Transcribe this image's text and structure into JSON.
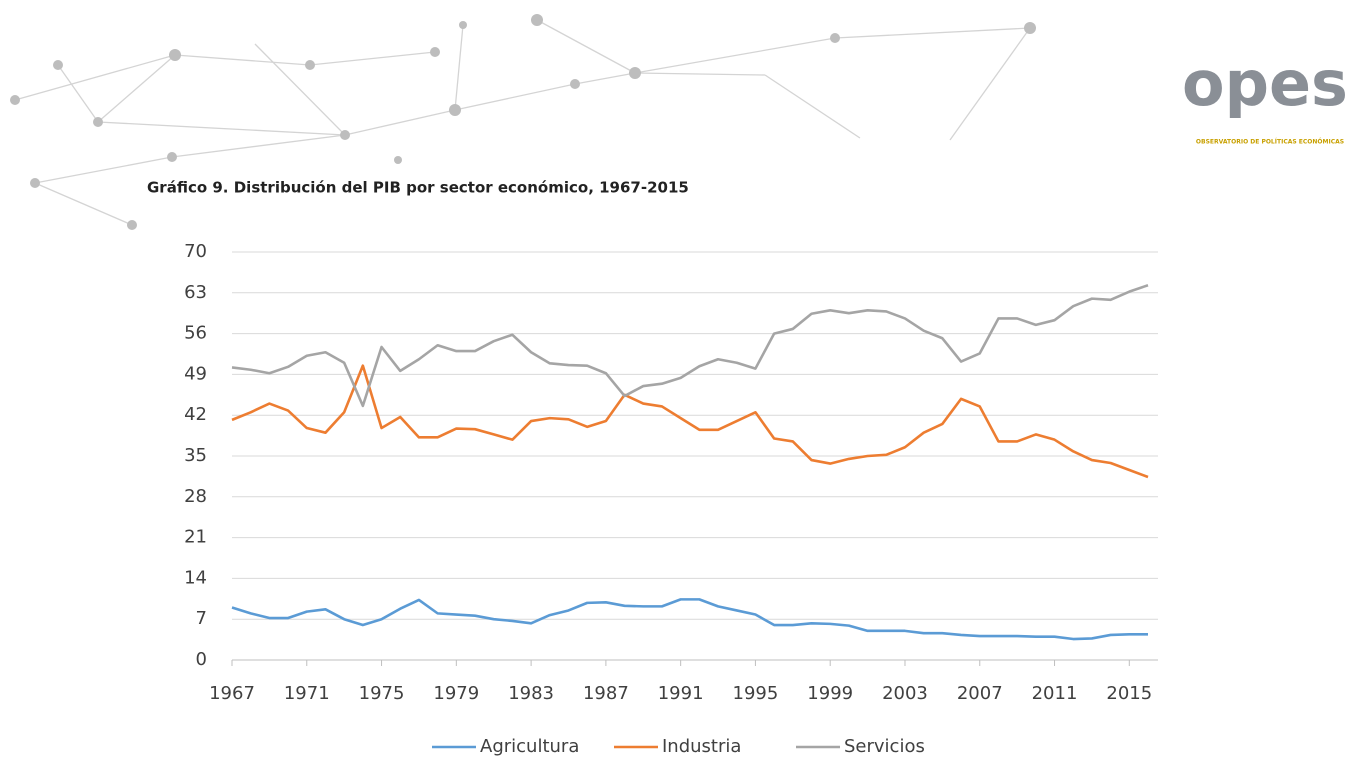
{
  "logo": {
    "name": "opes",
    "tagline": "OBSERVATORIO DE POLÍTICAS ECONÓMICAS"
  },
  "chart_data": {
    "type": "line",
    "title": "Gráfico 9. Distribución del PIB por sector económico, 1967-2015",
    "x": [
      1967,
      1968,
      1969,
      1970,
      1971,
      1972,
      1973,
      1974,
      1975,
      1976,
      1977,
      1978,
      1979,
      1980,
      1981,
      1982,
      1983,
      1984,
      1985,
      1986,
      1987,
      1988,
      1989,
      1990,
      1991,
      1992,
      1993,
      1994,
      1995,
      1996,
      1997,
      1998,
      1999,
      2000,
      2001,
      2002,
      2003,
      2004,
      2005,
      2006,
      2007,
      2008,
      2009,
      2010,
      2011,
      2012,
      2013,
      2014,
      2015,
      2016
    ],
    "series": [
      {
        "name": "Agricultura",
        "color": "#5b9bd5",
        "values": [
          9,
          8,
          7.2,
          7.2,
          8.3,
          8.7,
          7,
          6,
          7,
          8.8,
          10.3,
          8,
          7.8,
          7.6,
          7,
          6.7,
          6.3,
          7.7,
          8.5,
          9.8,
          9.9,
          9.3,
          9.2,
          9.2,
          10.4,
          10.4,
          9.2,
          8.5,
          7.8,
          6,
          6,
          6.3,
          6.2,
          5.9,
          5,
          5,
          5,
          4.6,
          4.6,
          4.3,
          4.1,
          4.1,
          4.1,
          4,
          4,
          3.6,
          3.7,
          4.3,
          4.4,
          4.4
        ]
      },
      {
        "name": "Industria",
        "color": "#ed7d31",
        "values": [
          41.2,
          42.5,
          44,
          42.8,
          39.8,
          39,
          42.5,
          50.5,
          39.8,
          41.7,
          38.2,
          38.2,
          39.7,
          39.6,
          38.7,
          37.8,
          41,
          41.5,
          41.3,
          40,
          41,
          45.5,
          44,
          43.5,
          41.5,
          39.5,
          39.5,
          41,
          42.5,
          38,
          37.5,
          34.3,
          33.7,
          34.5,
          35,
          35.2,
          36.5,
          39,
          40.5,
          44.8,
          43.5,
          37.5,
          37.5,
          38.7,
          37.8,
          35.8,
          34.3,
          33.8,
          32.6,
          31.4
        ]
      },
      {
        "name": "Servicios",
        "color": "#a5a5a5",
        "values": [
          50.2,
          49.8,
          49.2,
          50.3,
          52.2,
          52.8,
          51,
          43.6,
          53.7,
          49.6,
          51.6,
          54,
          53,
          53,
          54.7,
          55.8,
          52.8,
          50.9,
          50.6,
          50.5,
          49.2,
          45.3,
          47,
          47.4,
          48.4,
          50.4,
          51.6,
          51,
          50,
          56,
          56.8,
          59.4,
          60,
          59.5,
          60,
          59.8,
          58.6,
          56.5,
          55.2,
          51.2,
          52.6,
          58.6,
          58.6,
          57.5,
          58.3,
          60.7,
          62,
          61.8,
          63.2,
          64.3
        ]
      }
    ],
    "xlim": [
      1967,
      2016
    ],
    "xticks": [
      1967,
      1971,
      1975,
      1979,
      1983,
      1987,
      1991,
      1995,
      1999,
      2003,
      2007,
      2011,
      2015
    ],
    "ylim": [
      0,
      70
    ],
    "yticks": [
      0,
      7,
      14,
      21,
      28,
      35,
      42,
      49,
      56,
      63,
      70
    ],
    "grid": true,
    "legend": "bottom"
  }
}
